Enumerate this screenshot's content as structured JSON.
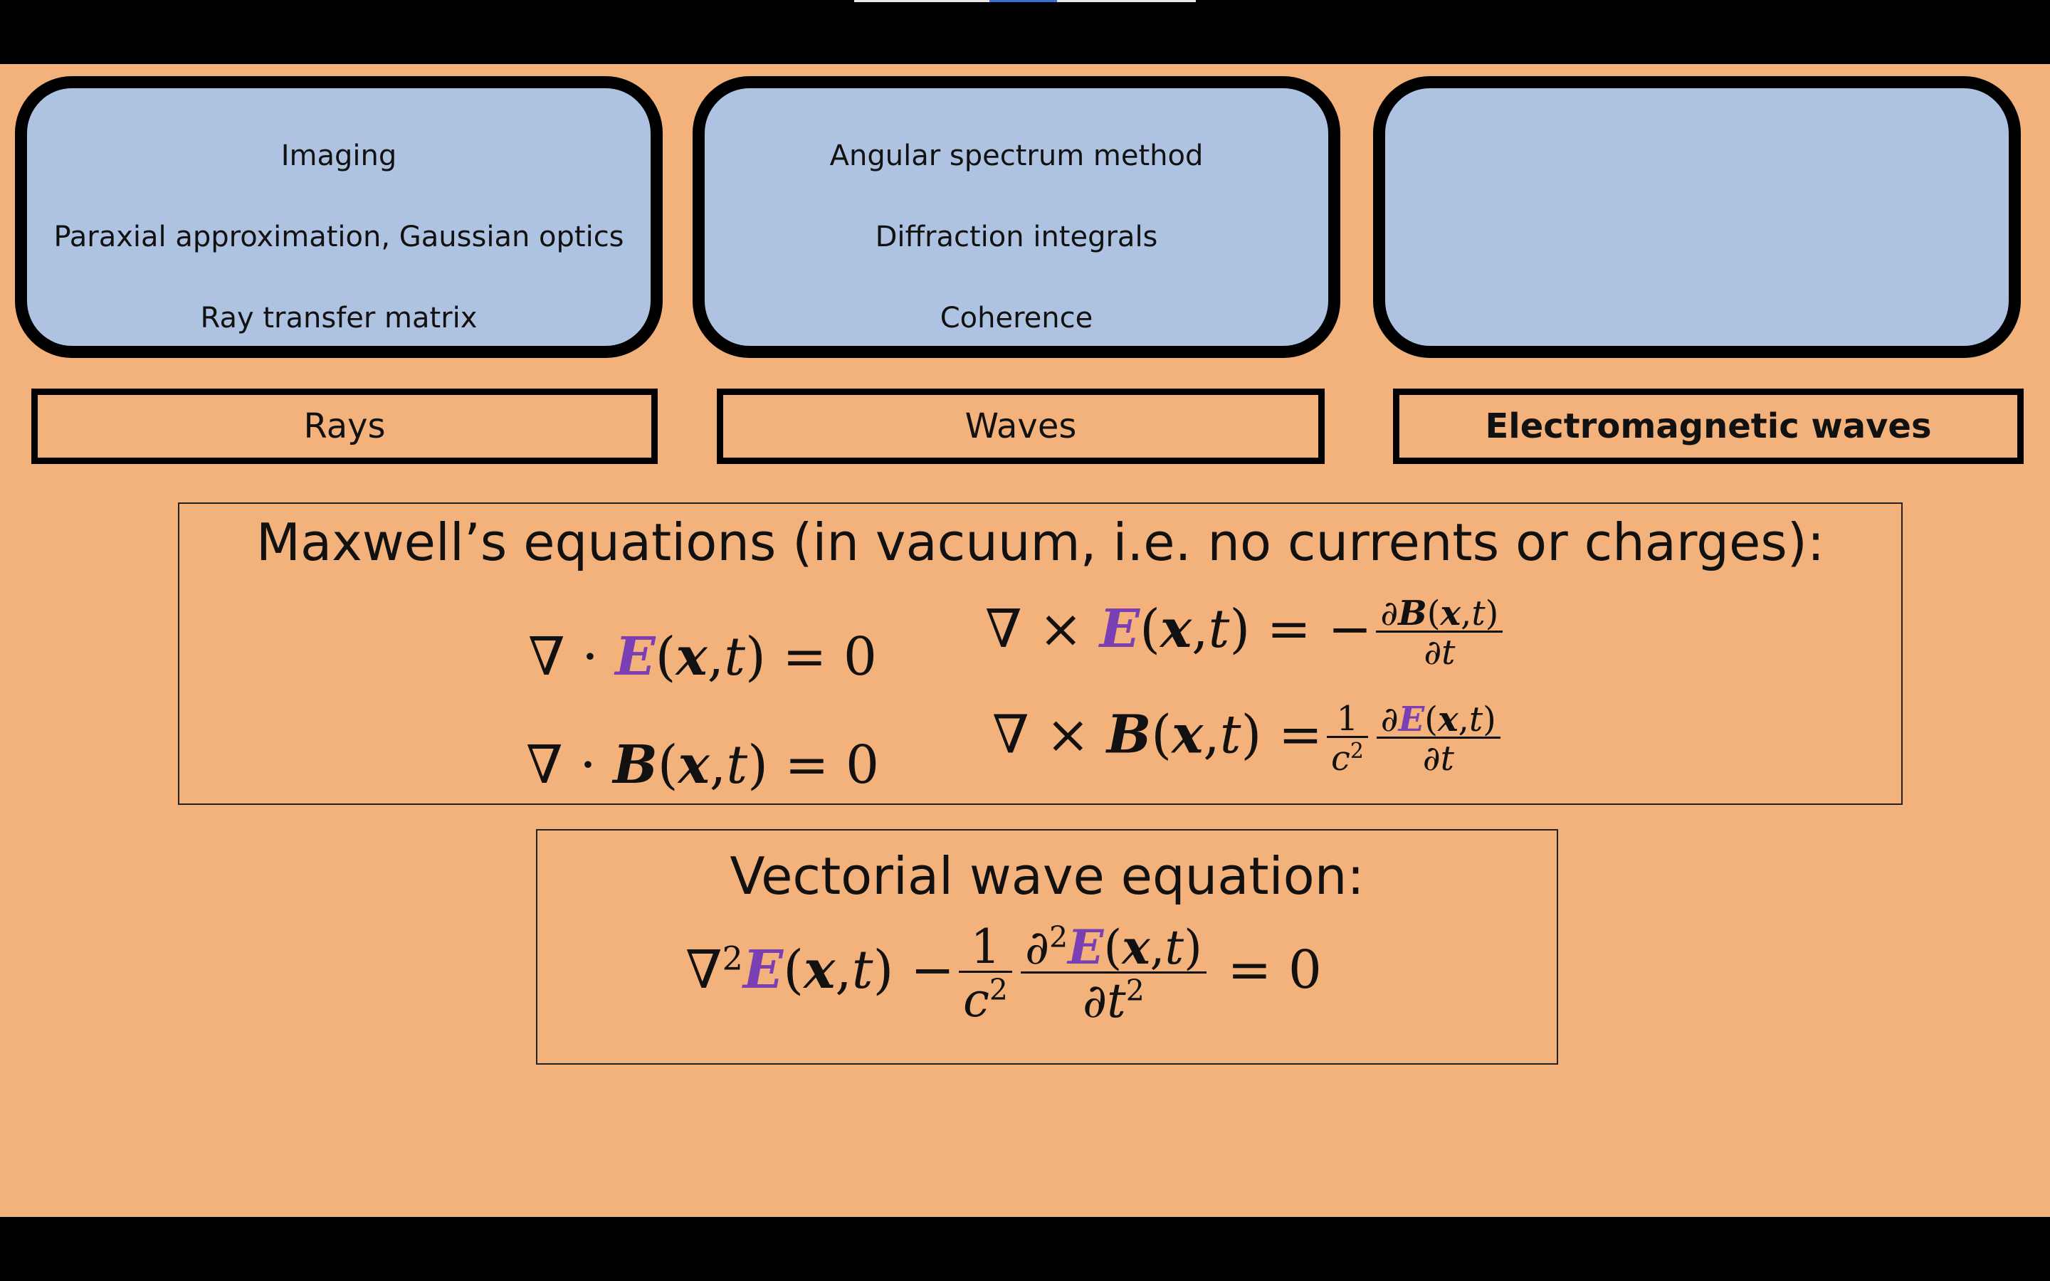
{
  "topics": [
    {
      "label": "Rays",
      "items": [
        "Imaging",
        "Paraxial approximation, Gaussian optics",
        "Ray transfer matrix"
      ]
    },
    {
      "label": "Waves",
      "items": [
        "Angular spectrum method",
        "Diffraction integrals",
        "Coherence"
      ]
    },
    {
      "label": "Electromagnetic waves",
      "items": []
    }
  ],
  "maxwell": {
    "title": "Maxwell’s equations (in vacuum, i.e. no currents or charges):"
  },
  "wave": {
    "title": "Vectorial wave equation:"
  },
  "colors": {
    "slide_background": "#f3b27c",
    "box_fill": "#adc3e1",
    "field_accent": "#7a3fb3"
  }
}
